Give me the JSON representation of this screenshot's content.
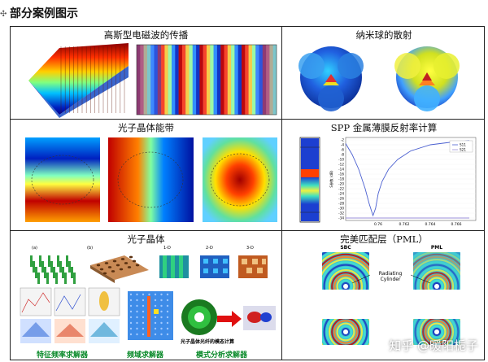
{
  "page": {
    "heading": "部分案例图示",
    "move_handle": "✣"
  },
  "cells": {
    "gaussian": {
      "title": "高斯型电磁波的传播"
    },
    "nano": {
      "title": "纳米球的散射"
    },
    "band": {
      "title": "光子晶体能带"
    },
    "spp": {
      "title": "SPP 金属薄膜反射率计算",
      "y_ticks": [
        "-2",
        "-4",
        "-6",
        "-8",
        "-10",
        "-12",
        "-14",
        "-16",
        "-18",
        "-20",
        "-22",
        "-24",
        "-26",
        "-28",
        "-30",
        "-32",
        "-34"
      ],
      "y_label": "S参数 (dB)",
      "x_ticks": [
        "0.76",
        "0.762",
        "0.764",
        "0.766"
      ],
      "legend": [
        "S11",
        "S21"
      ]
    },
    "crystal": {
      "title": "光子晶体",
      "sub_labels": [
        "(a)",
        "(b)",
        "1-D",
        "2-D",
        "3-D"
      ],
      "captions": [
        "特征频率求解器",
        "频域求解器",
        "模式分析求解器"
      ],
      "inset_label": "光子晶体光纤的模态计算"
    },
    "pml": {
      "title": "完美匹配层（PML）",
      "col_labels": [
        "SBC",
        "PML"
      ],
      "annotation": "Radiating\nCylinder"
    }
  },
  "watermark": "知乎 @暖阳栀子",
  "chart_data": {
    "type": "line",
    "title": "",
    "xlabel": "",
    "ylabel": "S参数 (dB)",
    "xlim": [
      0.7575,
      0.7675
    ],
    "ylim": [
      -35,
      -1
    ],
    "series": [
      {
        "name": "S11",
        "x": [
          0.7575,
          0.758,
          0.7585,
          0.759,
          0.7593,
          0.7596,
          0.7598,
          0.76,
          0.7603,
          0.7608,
          0.7615,
          0.7625,
          0.764,
          0.7655,
          0.767
        ],
        "values": [
          -3.5,
          -8,
          -14,
          -22,
          -28,
          -33,
          -30,
          -24,
          -19,
          -14,
          -10,
          -6.5,
          -4,
          -3,
          -2.3
        ]
      },
      {
        "name": "S21",
        "x": [
          0.7575,
          0.767
        ],
        "values": [
          -34,
          -34
        ]
      }
    ],
    "colors": {
      "S11": "#4a5fd0",
      "S21": "#9b8fd8"
    }
  }
}
